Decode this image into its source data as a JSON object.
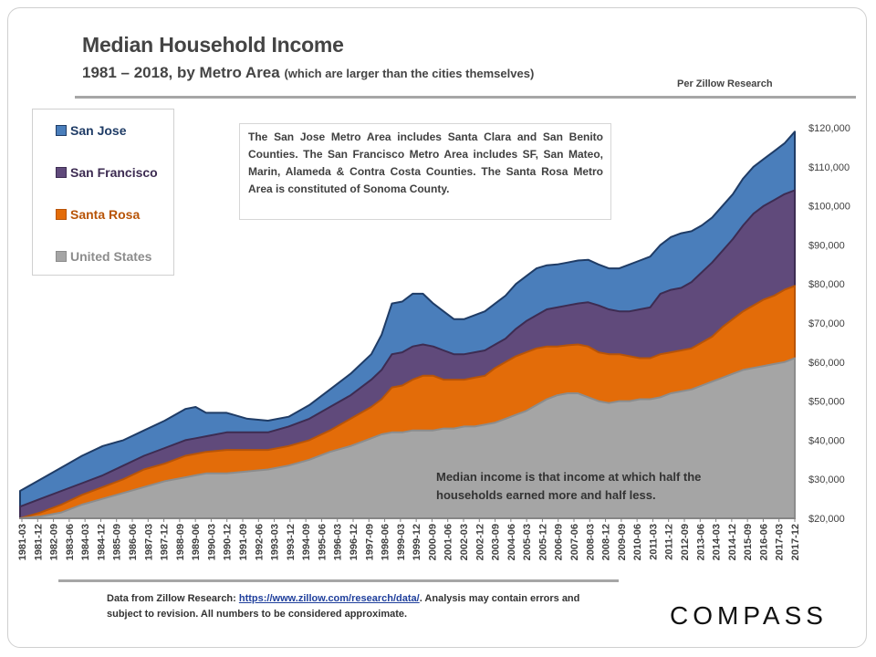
{
  "header": {
    "title": "Median Household Income",
    "subtitle_main": "1981 – 2018, by Metro Area",
    "subtitle_note": "(which are larger than the cities themselves)",
    "source_label": "Per Zillow Research"
  },
  "info_box": {
    "text": "The San Jose Metro Area includes Santa Clara and San Benito Counties. The San Francisco Metro Area includes SF, San Mateo, Marin, Alameda & Contra Costa Counties. The Santa Rosa Metro Area is constituted of Sonoma County."
  },
  "median_note": {
    "line1": "Median income is that income at which half the",
    "line2": "households earned more and half less."
  },
  "footer": {
    "prefix": "Data from Zillow Research: ",
    "link_text": "https://www.zillow.com/research/data/",
    "suffix": ". Analysis may contain errors and subject to revision. All numbers to be considered approximate."
  },
  "logo": {
    "text": "COMPASS"
  },
  "chart_data": {
    "type": "area",
    "title": "Median Household Income",
    "subtitle": "1981 – 2018, by Metro Area (which are larger than the cities themselves)",
    "xlabel": "",
    "ylabel": "",
    "ylim": [
      20000,
      120000
    ],
    "y_ticks": [
      20000,
      30000,
      40000,
      50000,
      60000,
      70000,
      80000,
      90000,
      100000,
      110000,
      120000
    ],
    "y_tick_labels": [
      "$20,000",
      "$30,000",
      "$40,000",
      "$50,000",
      "$60,000",
      "$70,000",
      "$80,000",
      "$90,000",
      "$100,000",
      "$110,000",
      "$120,000"
    ],
    "x_tick_labels": [
      "1981-03",
      "1981-12",
      "1982-09",
      "1983-06",
      "1984-03",
      "1984-12",
      "1985-09",
      "1986-06",
      "1987-03",
      "1987-12",
      "1988-09",
      "1989-06",
      "1990-03",
      "1990-12",
      "1991-09",
      "1992-06",
      "1993-03",
      "1993-12",
      "1994-09",
      "1995-06",
      "1996-03",
      "1996-12",
      "1997-09",
      "1998-06",
      "1999-03",
      "1999-12",
      "2000-09",
      "2001-06",
      "2002-03",
      "2002-12",
      "2003-09",
      "2004-06",
      "2005-03",
      "2005-12",
      "2006-09",
      "2007-06",
      "2008-03",
      "2008-12",
      "2009-09",
      "2010-06",
      "2011-03",
      "2011-12",
      "2012-09",
      "2013-06",
      "2014-03",
      "2014-12",
      "2015-09",
      "2016-06",
      "2017-03",
      "2017-12"
    ],
    "legend_position": "top-left",
    "grid": false,
    "x": [
      1981.0,
      1982.0,
      1983.0,
      1984.0,
      1985.0,
      1986.0,
      1987.0,
      1988.0,
      1989.0,
      1989.5,
      1990.0,
      1991.0,
      1992.0,
      1993.0,
      1994.0,
      1995.0,
      1996.0,
      1997.0,
      1998.0,
      1998.5,
      1999.0,
      1999.5,
      2000.0,
      2000.5,
      2001.0,
      2001.5,
      2002.0,
      2002.5,
      2003.0,
      2003.5,
      2004.0,
      2004.5,
      2005.0,
      2005.5,
      2006.0,
      2006.5,
      2007.0,
      2007.5,
      2008.0,
      2008.5,
      2009.0,
      2009.5,
      2010.0,
      2010.5,
      2011.0,
      2011.5,
      2012.0,
      2012.5,
      2013.0,
      2013.5,
      2014.0,
      2014.5,
      2015.0,
      2015.5,
      2016.0,
      2016.5,
      2017.0,
      2017.5,
      2018.0,
      2018.5
    ],
    "series": [
      {
        "name": "San Jose",
        "color": "#4a7ebb",
        "stroke": "#1f3c66",
        "values": [
          27000,
          30000,
          33000,
          36000,
          38500,
          40000,
          42500,
          45000,
          48000,
          48500,
          47000,
          47000,
          45500,
          45000,
          46000,
          49000,
          53000,
          57000,
          62000,
          67000,
          75000,
          75500,
          77500,
          77500,
          75000,
          73000,
          71000,
          71000,
          72000,
          73000,
          75000,
          77000,
          80000,
          82000,
          84000,
          84800,
          85000,
          85500,
          86000,
          86200,
          85000,
          84000,
          84000,
          85000,
          86000,
          87000,
          90000,
          92000,
          93000,
          93500,
          95000,
          97000,
          100000,
          103000,
          107000,
          110000,
          112000,
          114000,
          116000,
          119000
        ]
      },
      {
        "name": "San Francisco",
        "color": "#604a7b",
        "stroke": "#3d2c52",
        "values": [
          23000,
          25000,
          27000,
          29000,
          31000,
          33500,
          36000,
          38000,
          40000,
          40500,
          41000,
          42000,
          42000,
          42000,
          43500,
          45500,
          48500,
          51500,
          55500,
          58000,
          62000,
          62500,
          64000,
          64500,
          64000,
          63000,
          62000,
          62000,
          62500,
          63000,
          64500,
          66000,
          68500,
          70500,
          72000,
          73500,
          74000,
          74500,
          75000,
          75300,
          74500,
          73500,
          73000,
          73000,
          73500,
          74000,
          77500,
          78500,
          79000,
          80500,
          83000,
          85500,
          88500,
          91500,
          95000,
          98000,
          100000,
          101500,
          103000,
          104000
        ]
      },
      {
        "name": "Santa Rosa",
        "color": "#e36c09",
        "stroke": "#b85407",
        "values": [
          20000,
          21500,
          23500,
          26000,
          28000,
          30000,
          32500,
          34000,
          36000,
          36500,
          37000,
          37500,
          37500,
          37500,
          38500,
          40000,
          42500,
          45500,
          48500,
          50500,
          53500,
          54000,
          55500,
          56500,
          56500,
          55500,
          55500,
          55500,
          56000,
          56500,
          58500,
          60000,
          61500,
          62500,
          63500,
          64000,
          64000,
          64300,
          64500,
          64000,
          62500,
          62000,
          62000,
          61500,
          61000,
          61000,
          62000,
          62500,
          63000,
          63500,
          65000,
          66500,
          69000,
          71000,
          73000,
          74500,
          76000,
          77000,
          78500,
          79500
        ]
      },
      {
        "name": "United States",
        "color": "#a5a5a5",
        "stroke": "#8c8c8c",
        "values": [
          20000,
          20500,
          21500,
          23500,
          25000,
          26500,
          28000,
          29500,
          30500,
          31000,
          31500,
          31500,
          32000,
          32500,
          33500,
          35000,
          37000,
          38500,
          40500,
          41500,
          42000,
          42000,
          42500,
          42500,
          42500,
          43000,
          43000,
          43500,
          43500,
          44000,
          44500,
          45500,
          46500,
          47500,
          49000,
          50500,
          51500,
          52000,
          52000,
          51000,
          50000,
          49500,
          50000,
          50000,
          50500,
          50500,
          51000,
          52000,
          52500,
          53000,
          54000,
          55000,
          56000,
          57000,
          58000,
          58500,
          59000,
          59500,
          60000,
          61000
        ]
      }
    ]
  }
}
